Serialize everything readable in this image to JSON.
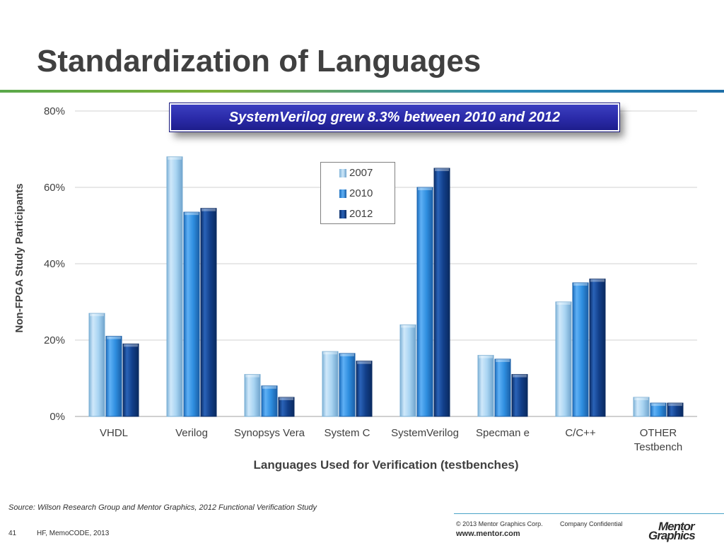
{
  "slide": {
    "title": "Standardization of Languages",
    "callout": "SystemVerilog  grew  8.3%  between  2010 and 2012",
    "source": "Source: Wilson Research Group and Mentor Graphics, 2012 Functional Verification Study",
    "copyright": "© 2013 Mentor Graphics Corp.",
    "confidential": "Company Confidential",
    "website": "www.mentor.com",
    "slide_number": "41",
    "event": "HF, MemoCODE, 2013",
    "logo_line1": "Mentor",
    "logo_line2": "Graphics"
  },
  "chart_data": {
    "type": "bar",
    "title": "",
    "xlabel": "Languages Used for Verification (testbenches)",
    "ylabel": "Non-FPGA Study Participants",
    "ylim": [
      0,
      80
    ],
    "yticks": [
      0,
      20,
      40,
      60,
      80
    ],
    "ytick_labels": [
      "0%",
      "20%",
      "40%",
      "60%",
      "80%"
    ],
    "grid": true,
    "legend_position": "center",
    "categories": [
      "VHDL",
      "Verilog",
      "Synopsys Vera",
      "System C",
      "SystemVerilog",
      "Specman e",
      "C/C++",
      "OTHER Testbench"
    ],
    "category_lines": [
      [
        "VHDL"
      ],
      [
        "Verilog"
      ],
      [
        "Synopsys Vera"
      ],
      [
        "System C"
      ],
      [
        "SystemVerilog"
      ],
      [
        "Specman e"
      ],
      [
        "C/C++"
      ],
      [
        "OTHER",
        "Testbench"
      ]
    ],
    "series": [
      {
        "name": "2007",
        "color": "#a8d4f2",
        "values": [
          27,
          68,
          11,
          17,
          24,
          16,
          30,
          5
        ]
      },
      {
        "name": "2010",
        "color": "#2f8fe0",
        "values": [
          21,
          53.5,
          8,
          16.5,
          60,
          15,
          35,
          3.5
        ]
      },
      {
        "name": "2012",
        "color": "#123f8a",
        "values": [
          19,
          54.5,
          5,
          14.5,
          65,
          11,
          36,
          3.5
        ]
      }
    ]
  }
}
